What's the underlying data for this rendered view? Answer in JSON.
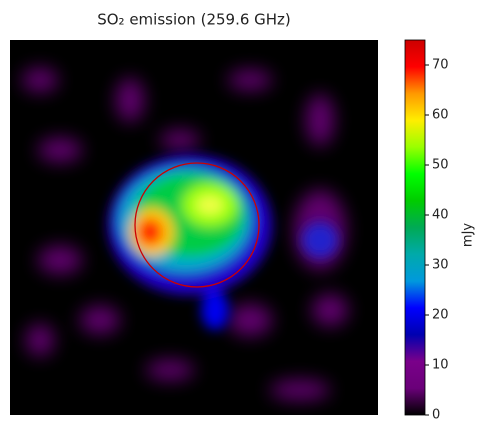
{
  "chart_data": {
    "type": "image",
    "title": "SO₂ emission (259.6 GHz)",
    "colorbar": {
      "label": "mJy",
      "lim": [
        0,
        75
      ],
      "ticks": [
        0,
        10,
        20,
        30,
        40,
        50,
        60,
        70
      ],
      "colormap": [
        "#000000",
        "#6a0079",
        "#7a008a",
        "#0000b0",
        "#0000ff",
        "#0099dd",
        "#00aaaa",
        "#00aa55",
        "#00cc00",
        "#00ff00",
        "#99ff00",
        "#ffee00",
        "#ff9900",
        "#ff0000",
        "#cc0000"
      ]
    }
  }
}
